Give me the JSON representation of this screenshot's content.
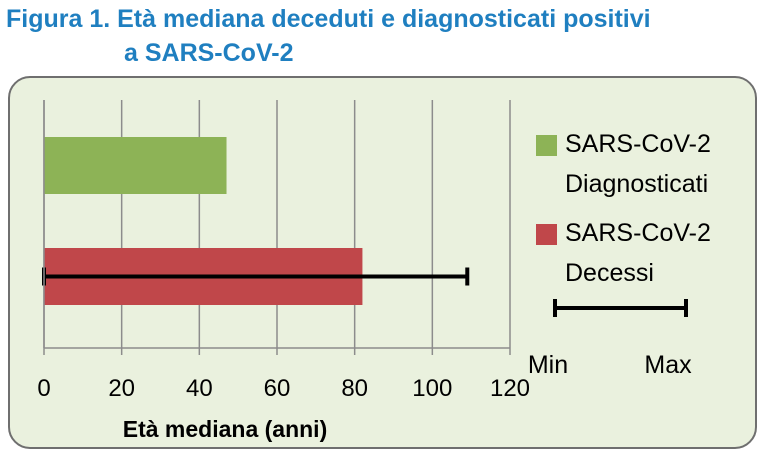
{
  "chart_data": {
    "type": "bar",
    "orientation": "horizontal",
    "title": "Figura 1. Età mediana deceduti e diagnosticati positivi",
    "title_line2": "a SARS-CoV-2",
    "xlabel": "Età mediana (anni)",
    "ylabel": "",
    "xlim": [
      0,
      120
    ],
    "x_ticks": [
      "0",
      "20",
      "40",
      "60",
      "80",
      "100",
      "120"
    ],
    "grid": "vertical",
    "legend_position": "right",
    "categories": [
      "Diagnosticati",
      "Decessi"
    ],
    "series": [
      {
        "name": "SARS-CoV-2 Diagnosticati",
        "legend_line1": "SARS-CoV-2",
        "legend_line2": "Diagnosticati",
        "color": "#8db356",
        "value": 47
      },
      {
        "name": "SARS-CoV-2 Decessi",
        "legend_line1": "SARS-CoV-2",
        "legend_line2": "Decessi",
        "color": "#c0474a",
        "value": 82,
        "error_min": 0,
        "error_max": 109
      }
    ],
    "error_legend": {
      "min_label": "Min",
      "max_label": "Max"
    }
  }
}
